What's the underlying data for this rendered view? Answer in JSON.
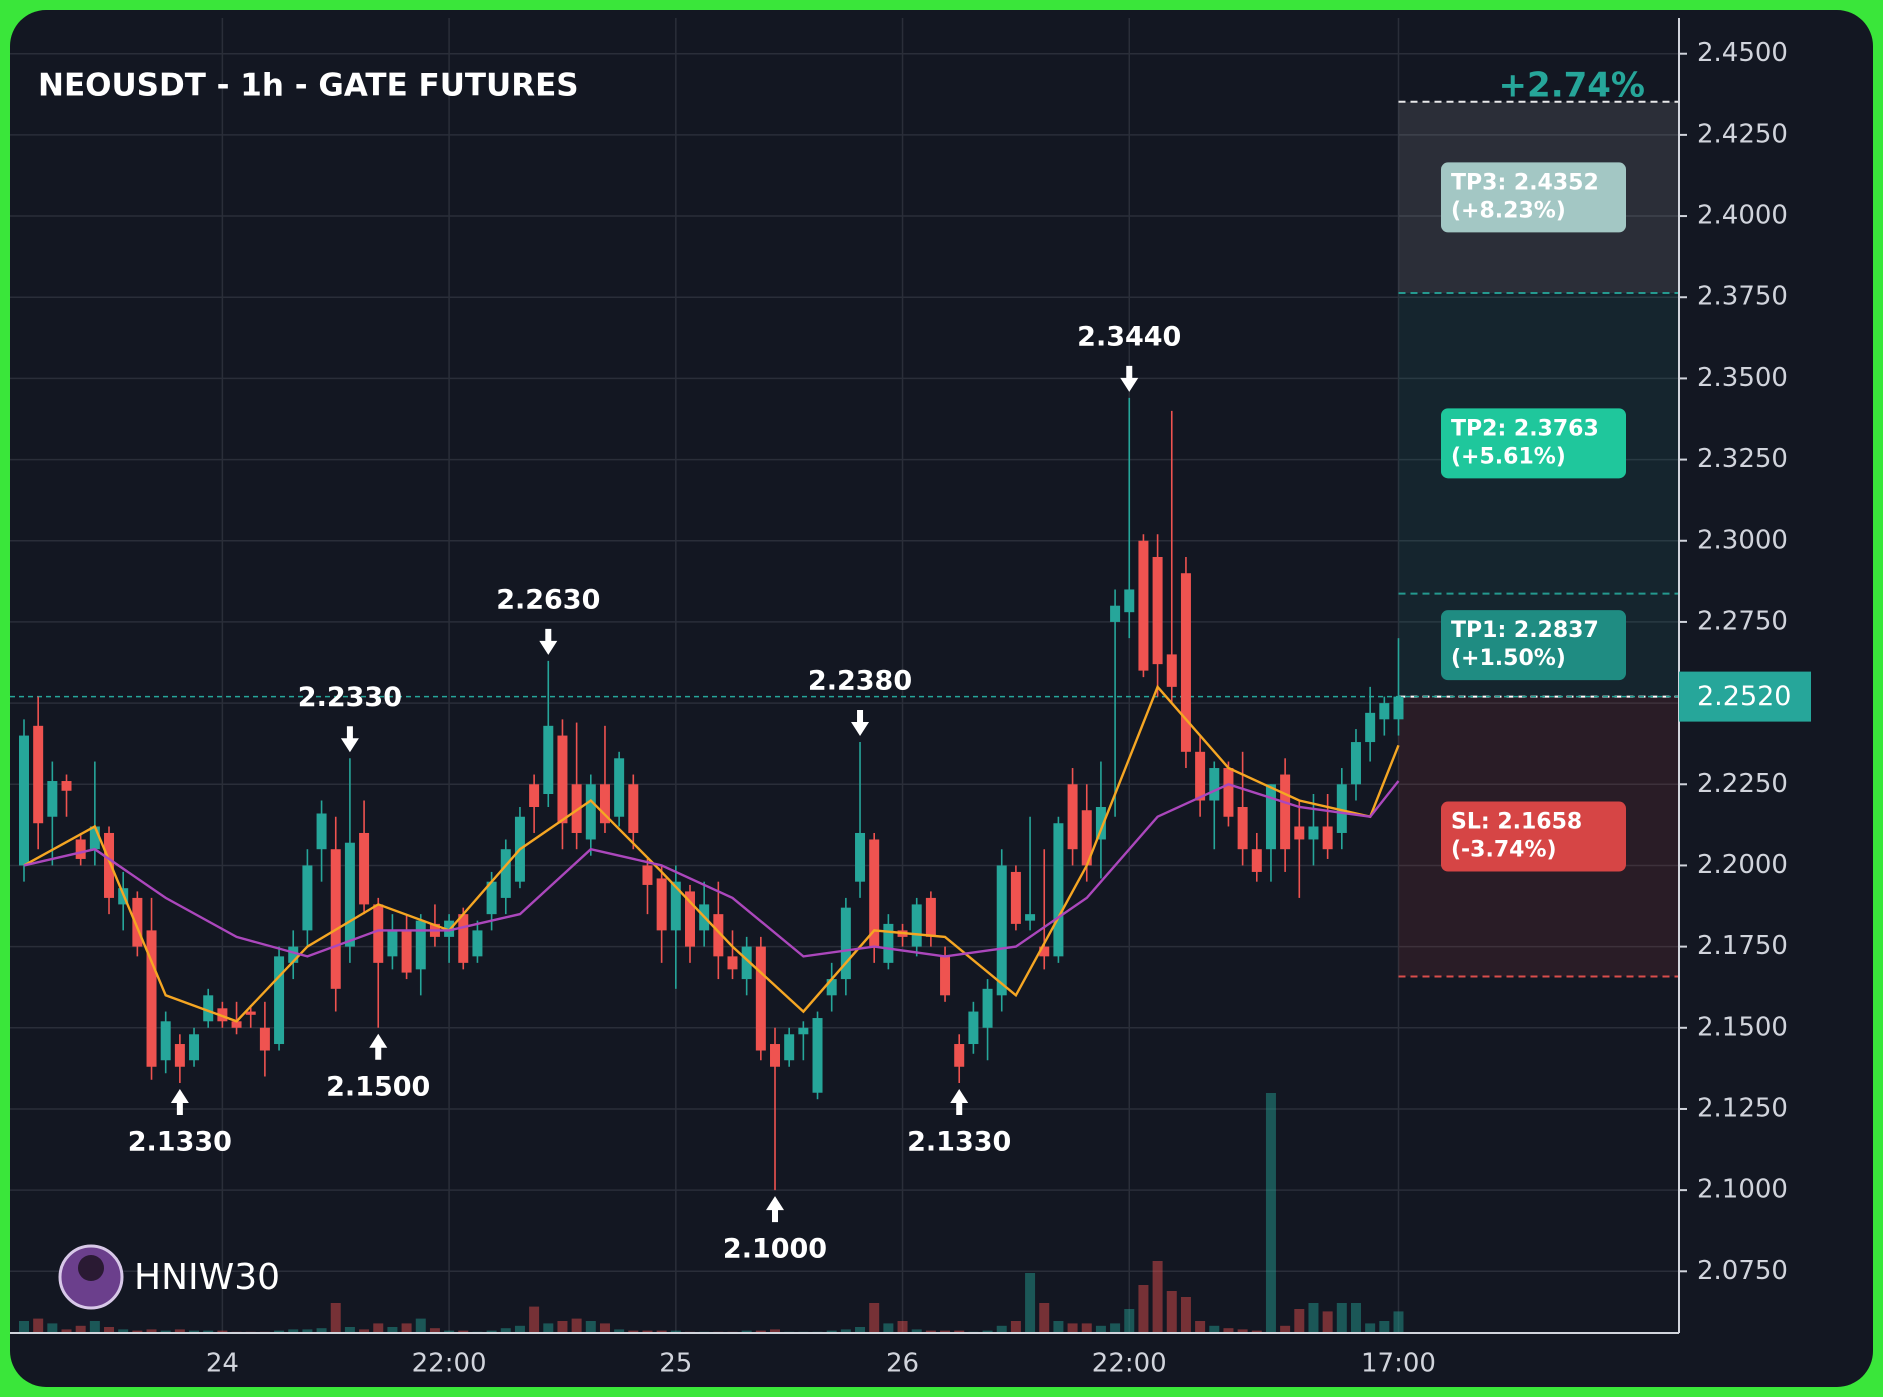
{
  "chart_data": {
    "type": "candlestick",
    "title": "NEOUSDT - 1h - GATE FUTURES",
    "watermark": "HNIW30",
    "categories": [
      null,
      null,
      null,
      null,
      null,
      null,
      null,
      null,
      null,
      null,
      null,
      null,
      null,
      null,
      "24",
      null,
      null,
      null,
      null,
      null,
      null,
      null,
      null,
      null,
      null,
      null,
      null,
      null,
      null,
      null,
      "22:00",
      null,
      null,
      null,
      null,
      null,
      null,
      null,
      null,
      null,
      null,
      null,
      null,
      null,
      null,
      null,
      "25",
      null,
      null,
      null,
      null,
      null,
      null,
      null,
      null,
      null,
      null,
      null,
      null,
      null,
      null,
      null,
      "26",
      null,
      null,
      null,
      null,
      null,
      null,
      null,
      null,
      null,
      null,
      null,
      null,
      null,
      null,
      null,
      "22:00",
      null,
      null,
      null,
      null,
      null,
      null,
      null,
      null,
      null,
      null,
      null,
      null,
      null,
      null,
      null,
      null,
      null,
      null,
      "17:00"
    ],
    "open": [
      2.2,
      2.243,
      2.215,
      2.226,
      2.208,
      2.205,
      2.21,
      2.188,
      2.19,
      2.18,
      2.14,
      2.145,
      2.14,
      2.152,
      2.156,
      2.152,
      2.155,
      2.15,
      2.145,
      2.17,
      2.18,
      2.205,
      2.205,
      2.175,
      2.21,
      2.188,
      2.172,
      2.18,
      2.168,
      2.182,
      2.178,
      2.185,
      2.172,
      2.185,
      2.19,
      2.195,
      2.225,
      2.222,
      2.24,
      2.225,
      2.208,
      2.225,
      2.215,
      2.225,
      2.2,
      2.196,
      2.18,
      2.192,
      2.18,
      2.185,
      2.172,
      2.165,
      2.175,
      2.145,
      2.14,
      2.148,
      2.13,
      2.16,
      2.165,
      2.195,
      2.208,
      2.17,
      2.18,
      2.175,
      2.19,
      2.172,
      2.145,
      2.145,
      2.15,
      2.16,
      2.198,
      2.183,
      2.175,
      2.172,
      2.225,
      2.217,
      2.208,
      2.275,
      2.278,
      2.3,
      2.295,
      2.265,
      2.29,
      2.235,
      2.22,
      2.23,
      2.218,
      2.205,
      2.205,
      2.228,
      2.212,
      2.208,
      2.212,
      2.21,
      2.225,
      2.238,
      2.245,
      2.245
    ],
    "high": [
      2.245,
      2.252,
      2.232,
      2.228,
      2.21,
      2.232,
      2.212,
      2.198,
      2.192,
      2.19,
      2.155,
      2.148,
      2.15,
      2.162,
      2.158,
      2.158,
      2.157,
      2.158,
      2.175,
      2.18,
      2.205,
      2.22,
      2.215,
      2.233,
      2.22,
      2.19,
      2.185,
      2.185,
      2.185,
      2.188,
      2.185,
      2.187,
      2.183,
      2.198,
      2.208,
      2.218,
      2.228,
      2.263,
      2.245,
      2.244,
      2.228,
      2.243,
      2.235,
      2.228,
      2.202,
      2.2,
      2.2,
      2.194,
      2.195,
      2.195,
      2.18,
      2.178,
      2.178,
      2.15,
      2.15,
      2.152,
      2.155,
      2.17,
      2.19,
      2.238,
      2.21,
      2.185,
      2.182,
      2.19,
      2.192,
      2.175,
      2.148,
      2.158,
      2.165,
      2.205,
      2.2,
      2.215,
      2.205,
      2.215,
      2.23,
      2.225,
      2.232,
      2.285,
      2.344,
      2.302,
      2.302,
      2.34,
      2.295,
      2.24,
      2.232,
      2.232,
      2.235,
      2.21,
      2.225,
      2.233,
      2.22,
      2.222,
      2.222,
      2.23,
      2.242,
      2.255,
      2.252,
      2.27
    ],
    "low": [
      2.195,
      2.205,
      2.2,
      2.215,
      2.2,
      2.2,
      2.185,
      2.18,
      2.172,
      2.134,
      2.136,
      2.133,
      2.138,
      2.15,
      2.15,
      2.148,
      2.15,
      2.135,
      2.143,
      2.165,
      2.175,
      2.195,
      2.155,
      2.17,
      2.185,
      2.15,
      2.168,
      2.165,
      2.16,
      2.175,
      2.17,
      2.168,
      2.17,
      2.18,
      2.185,
      2.193,
      2.21,
      2.218,
      2.205,
      2.205,
      2.203,
      2.21,
      2.212,
      2.205,
      2.185,
      2.17,
      2.162,
      2.17,
      2.175,
      2.165,
      2.165,
      2.16,
      2.14,
      2.1,
      2.138,
      2.14,
      2.128,
      2.155,
      2.16,
      2.19,
      2.17,
      2.168,
      2.175,
      2.172,
      2.175,
      2.158,
      2.133,
      2.142,
      2.14,
      2.155,
      2.18,
      2.18,
      2.168,
      2.17,
      2.2,
      2.195,
      2.196,
      2.215,
      2.27,
      2.258,
      2.252,
      2.25,
      2.23,
      2.215,
      2.205,
      2.212,
      2.2,
      2.195,
      2.195,
      2.198,
      2.19,
      2.2,
      2.202,
      2.205,
      2.22,
      2.232,
      2.24,
      2.24
    ],
    "close": [
      2.24,
      2.213,
      2.226,
      2.223,
      2.202,
      2.212,
      2.19,
      2.193,
      2.175,
      2.138,
      2.152,
      2.138,
      2.148,
      2.16,
      2.152,
      2.15,
      2.154,
      2.143,
      2.172,
      2.175,
      2.2,
      2.216,
      2.162,
      2.207,
      2.188,
      2.17,
      2.18,
      2.167,
      2.183,
      2.178,
      2.183,
      2.17,
      2.18,
      2.195,
      2.205,
      2.215,
      2.218,
      2.243,
      2.213,
      2.21,
      2.225,
      2.213,
      2.233,
      2.21,
      2.194,
      2.18,
      2.195,
      2.175,
      2.188,
      2.172,
      2.168,
      2.175,
      2.143,
      2.138,
      2.148,
      2.15,
      2.153,
      2.165,
      2.187,
      2.21,
      2.175,
      2.182,
      2.178,
      2.188,
      2.178,
      2.16,
      2.138,
      2.155,
      2.162,
      2.2,
      2.182,
      2.185,
      2.172,
      2.213,
      2.205,
      2.2,
      2.218,
      2.28,
      2.285,
      2.26,
      2.262,
      2.255,
      2.235,
      2.22,
      2.23,
      2.215,
      2.205,
      2.198,
      2.225,
      2.205,
      2.208,
      2.212,
      2.205,
      2.225,
      2.238,
      2.247,
      2.25,
      2.252
    ],
    "volume": [
      10,
      12,
      8,
      3,
      6,
      10,
      5,
      3,
      2,
      3,
      2,
      3,
      2,
      2,
      2,
      1,
      1,
      1,
      2,
      3,
      3,
      4,
      25,
      5,
      3,
      8,
      5,
      8,
      12,
      4,
      2,
      2,
      1,
      2,
      4,
      6,
      22,
      8,
      10,
      12,
      10,
      8,
      3,
      2,
      2,
      2,
      2,
      1,
      1,
      1,
      1,
      2,
      2,
      3,
      1,
      1,
      1,
      2,
      3,
      5,
      25,
      8,
      10,
      3,
      2,
      2,
      2,
      1,
      2,
      6,
      10,
      50,
      25,
      10,
      8,
      8,
      6,
      8,
      20,
      40,
      60,
      35,
      30,
      10,
      6,
      4,
      3,
      2,
      200,
      6,
      20,
      25,
      18,
      25,
      25,
      8,
      10,
      18
    ],
    "up_color": "#26a69a",
    "down_color": "#ef5350",
    "lines": [
      {
        "color": "#f5a623",
        "x": [
          0,
          5,
          10,
          15,
          20,
          25,
          30,
          35,
          40,
          45,
          50,
          55,
          60,
          65,
          70,
          75,
          80,
          85,
          90,
          95,
          97
        ],
        "values": [
          2.2,
          2.212,
          2.16,
          2.152,
          2.175,
          2.188,
          2.18,
          2.205,
          2.22,
          2.198,
          2.175,
          2.155,
          2.18,
          2.178,
          2.16,
          2.2,
          2.255,
          2.23,
          2.22,
          2.215,
          2.237
        ]
      },
      {
        "color": "#ab47bc",
        "x": [
          0,
          5,
          10,
          15,
          20,
          25,
          30,
          35,
          40,
          45,
          50,
          55,
          60,
          65,
          70,
          75,
          80,
          85,
          90,
          95,
          97
        ],
        "values": [
          2.2,
          2.205,
          2.19,
          2.178,
          2.172,
          2.18,
          2.18,
          2.185,
          2.205,
          2.2,
          2.19,
          2.172,
          2.175,
          2.172,
          2.175,
          2.19,
          2.215,
          2.225,
          2.218,
          2.215,
          2.226
        ]
      }
    ],
    "annotations": [
      {
        "x": 11,
        "value": 2.133,
        "label": "2.1330",
        "position": "below"
      },
      {
        "x": 23,
        "value": 2.233,
        "label": "2.2330",
        "position": "above"
      },
      {
        "x": 25,
        "value": 2.15,
        "label": "2.1500",
        "position": "below"
      },
      {
        "x": 37,
        "value": 2.263,
        "label": "2.2630",
        "position": "above"
      },
      {
        "x": 53,
        "value": 2.1,
        "label": "2.1000",
        "position": "below"
      },
      {
        "x": 59,
        "value": 2.238,
        "label": "2.2380",
        "position": "above"
      },
      {
        "x": 66,
        "value": 2.133,
        "label": "2.1330",
        "position": "below"
      },
      {
        "x": 78,
        "value": 2.344,
        "label": "2.3440",
        "position": "above"
      }
    ],
    "entry": 2.252,
    "change_label": "+2.74%",
    "levels": [
      {
        "value": 2.4352,
        "label": "TP3: 2.4352",
        "change": "(+8.23%)",
        "color": "#a3c7c4",
        "zone_color": "#ffffff"
      },
      {
        "value": 2.3763,
        "label": "TP2: 2.3763",
        "change": "(+5.61%)",
        "color": "#1fc79c",
        "zone_color": "#26a69a"
      },
      {
        "value": 2.2837,
        "label": "TP1: 2.2837",
        "change": "(+1.50%)",
        "color": "#1f8c82",
        "zone_color": "#26a69a"
      },
      {
        "value": 2.1658,
        "label": "SL: 2.1658",
        "change": "(-3.74%)",
        "color": "#d64545",
        "zone_color": "#ef5350"
      }
    ],
    "price_line": {
      "value": 2.252,
      "label": "2.2520",
      "color": "#26a69a"
    },
    "ylim": [
      2.056,
      2.461
    ],
    "yticks": [
      {
        "value": 2.45,
        "label": "2.4500"
      },
      {
        "value": 2.425,
        "label": "2.4250"
      },
      {
        "value": 2.4,
        "label": "2.4000"
      },
      {
        "value": 2.375,
        "label": "2.3750"
      },
      {
        "value": 2.35,
        "label": "2.3500"
      },
      {
        "value": 2.325,
        "label": "2.3250"
      },
      {
        "value": 2.3,
        "label": "2.3000"
      },
      {
        "value": 2.275,
        "label": "2.2750"
      },
      {
        "value": 2.25,
        "label": "2.2500"
      },
      {
        "value": 2.225,
        "label": "2.2250"
      },
      {
        "value": 2.2,
        "label": "2.2000"
      },
      {
        "value": 2.175,
        "label": "2.1750"
      },
      {
        "value": 2.15,
        "label": "2.1500"
      },
      {
        "value": 2.125,
        "label": "2.1250"
      },
      {
        "value": 2.1,
        "label": "2.1000"
      },
      {
        "value": 2.075,
        "label": "2.0750"
      }
    ],
    "grid": true
  }
}
